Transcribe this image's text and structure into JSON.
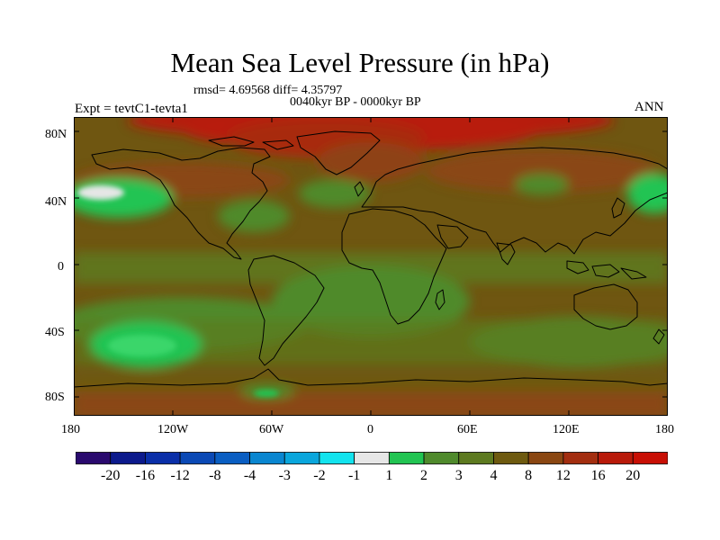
{
  "title": "Mean Sea Level Pressure (in hPa)",
  "stats": "rmsd= 4.69568 diff= 4.35797",
  "period": "0040kyr BP - 0000kyr BP",
  "experiment": "Expt = tevtC1-tevta1",
  "season": "ANN",
  "lat_labels": [
    "80N",
    "40N",
    "0",
    "40S",
    "80S"
  ],
  "lon_labels": [
    "180",
    "120W",
    "60W",
    "0",
    "60E",
    "120E",
    "180"
  ],
  "colorbar": {
    "colors": [
      "#2a0a6e",
      "#0c1a8c",
      "#0a2fa8",
      "#0b49b5",
      "#0a5ec2",
      "#0a86d0",
      "#0aa6dc",
      "#13e3ee",
      "#e6e6e6",
      "#22c452",
      "#4f8a2c",
      "#5d7a20",
      "#6e5a10",
      "#8a4712",
      "#a32e10",
      "#b81a0a",
      "#c80f05"
    ],
    "labels": [
      "-20",
      "-16",
      "-12",
      "-8",
      "-4",
      "-3",
      "-2",
      "-1",
      "1",
      "2",
      "3",
      "4",
      "8",
      "12",
      "16",
      "20"
    ]
  },
  "map": {
    "fill_base": "#6f5611"
  }
}
